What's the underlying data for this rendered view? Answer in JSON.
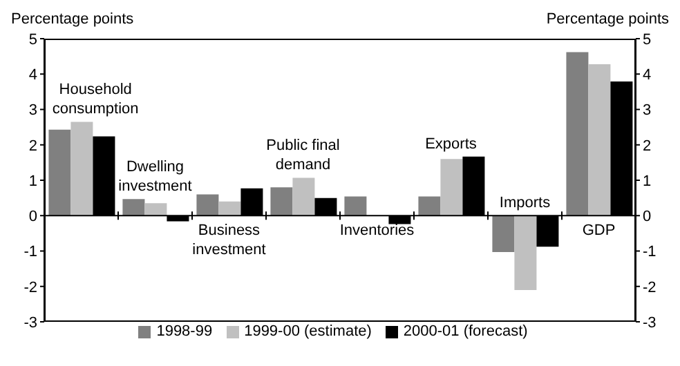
{
  "chart_data": {
    "type": "bar",
    "categories": [
      "Household consumption",
      "Dwelling investment",
      "Business investment",
      "Public final demand",
      "Inventories",
      "Exports",
      "Imports",
      "GDP"
    ],
    "series": [
      {
        "name": "1998-99",
        "color": "#808080",
        "values": [
          2.43,
          0.47,
          0.6,
          0.8,
          0.54,
          0.54,
          -1.03,
          4.62
        ]
      },
      {
        "name": "1999-00 (estimate)",
        "color": "#c0c0c0",
        "values": [
          2.65,
          0.35,
          0.4,
          1.07,
          0,
          1.6,
          -2.1,
          4.28
        ]
      },
      {
        "name": "2000-01 (forecast)",
        "color": "#000000",
        "values": [
          2.24,
          -0.16,
          0.77,
          0.5,
          -0.24,
          1.67,
          -0.88,
          3.79
        ]
      }
    ],
    "ylabel": "Percentage points",
    "y2label": "Percentage points",
    "ylim": [
      -3,
      5
    ],
    "yticks": [
      -3,
      -2,
      -1,
      0,
      1,
      2,
      3,
      4,
      5
    ],
    "y2lim": [
      -3,
      5
    ],
    "y2ticks": [
      -3,
      -2,
      -1,
      0,
      1,
      2,
      3,
      4,
      5
    ],
    "legend": "bottom"
  }
}
